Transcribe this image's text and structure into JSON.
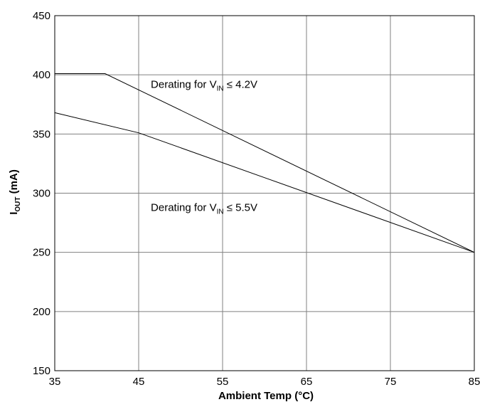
{
  "chart_data": {
    "type": "line",
    "xlabel": "Ambient Temp (°C)",
    "ylabel": {
      "main": "I",
      "sub": "OUT",
      "rest": " (mA)"
    },
    "xlim": [
      35,
      85
    ],
    "ylim": [
      150,
      450
    ],
    "xticks": [
      35,
      45,
      55,
      65,
      75,
      85
    ],
    "yticks": [
      150,
      200,
      250,
      300,
      350,
      400,
      450
    ],
    "grid": true,
    "series": [
      {
        "x": [
          35,
          41,
          85
        ],
        "y": [
          401,
          401,
          250
        ]
      },
      {
        "x": [
          35,
          45,
          85
        ],
        "y": [
          368,
          351,
          250
        ]
      }
    ],
    "annotations": [
      {
        "text": "Derating for V",
        "sub": "IN",
        "op": "≤",
        "value": "4.2V",
        "x": 52.8,
        "y": 389
      },
      {
        "text": "Derating for V",
        "sub": "IN",
        "op": "≤",
        "value": "5.5V",
        "x": 52.8,
        "y": 285
      }
    ]
  }
}
